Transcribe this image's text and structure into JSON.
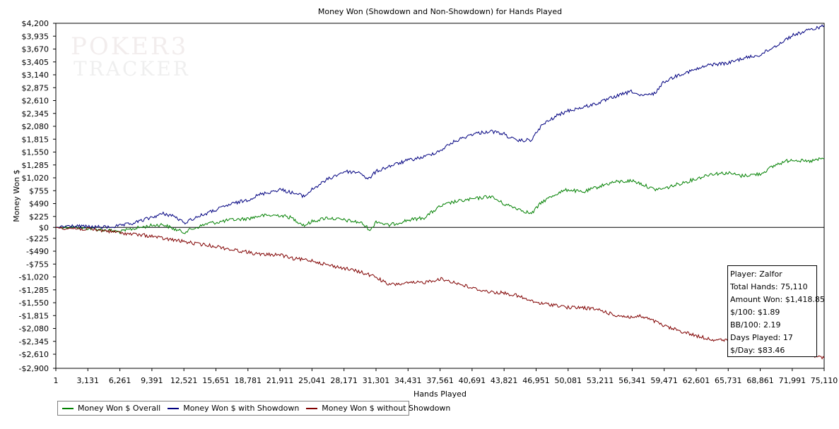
{
  "chart_data": {
    "type": "line",
    "title": "Money Won (Showdown and Non-Showdown) for Hands Played",
    "xlabel": "Hands Played",
    "ylabel": "Money Won $",
    "xlim": [
      1,
      75110
    ],
    "ylim": [
      -2900,
      4200
    ],
    "grid": false,
    "legend_position": "bottom-left",
    "x_ticks": [
      1,
      3131,
      6261,
      9391,
      12521,
      15651,
      18781,
      21911,
      25041,
      28171,
      31301,
      34431,
      37561,
      40691,
      43821,
      46951,
      50081,
      53211,
      56341,
      59471,
      62601,
      65731,
      68861,
      71991,
      75110
    ],
    "x_tick_labels": [
      "1",
      "3,131",
      "6,261",
      "9,391",
      "12,521",
      "15,651",
      "18,781",
      "21,911",
      "25,041",
      "28,171",
      "31,301",
      "34,431",
      "37,561",
      "40,691",
      "43,821",
      "46,951",
      "50,081",
      "53,211",
      "56,341",
      "59,471",
      "62,601",
      "65,731",
      "68,861",
      "71,991",
      "75,110"
    ],
    "y_ticks": [
      4200,
      3935,
      3670,
      3405,
      3140,
      2875,
      2610,
      2345,
      2080,
      1815,
      1550,
      1285,
      1020,
      755,
      490,
      225,
      0,
      -225,
      -490,
      -755,
      -1020,
      -1285,
      -1550,
      -1815,
      -2080,
      -2345,
      -2610,
      -2900
    ],
    "y_tick_labels": [
      "$4,200",
      "$3,935",
      "$3,670",
      "$3,405",
      "$3,140",
      "$2,875",
      "$2,610",
      "$2,345",
      "$2,080",
      "$1,815",
      "$1,550",
      "$1,285",
      "$1,020",
      "$755",
      "$490",
      "$225",
      "$0",
      "-$225",
      "-$490",
      "-$755",
      "-$1,020",
      "-$1,285",
      "-$1,550",
      "-$1,815",
      "-$2,080",
      "-$2,345",
      "-$2,610",
      "-$2,900"
    ],
    "series": [
      {
        "name": "Money Won $ Overall",
        "color": "#008000",
        "x": [
          1,
          1500,
          3131,
          5000,
          6261,
          7500,
          9391,
          10500,
          11500,
          12521,
          13500,
          15000,
          15651,
          17000,
          18781,
          20000,
          21911,
          23000,
          24300,
          25041,
          26500,
          28171,
          29800,
          30800,
          31301,
          32500,
          34431,
          36000,
          37561,
          38800,
          40691,
          42500,
          43821,
          45000,
          46500,
          47500,
          49000,
          50081,
          51500,
          53211,
          54500,
          56341,
          57200,
          58500,
          59471,
          61000,
          62601,
          64000,
          65731,
          67000,
          68861,
          70500,
          71991,
          73500,
          75110
        ],
        "values": [
          0,
          10,
          -20,
          -60,
          -90,
          -30,
          40,
          60,
          -30,
          -100,
          -20,
          90,
          100,
          150,
          180,
          240,
          250,
          200,
          40,
          120,
          200,
          150,
          100,
          -60,
          130,
          40,
          150,
          200,
          430,
          520,
          580,
          640,
          480,
          400,
          280,
          520,
          700,
          780,
          720,
          850,
          930,
          960,
          900,
          780,
          800,
          900,
          1000,
          1100,
          1120,
          1060,
          1100,
          1300,
          1400,
          1350,
          1418
        ]
      },
      {
        "name": "Money Won $ with Showdown",
        "color": "#000080",
        "x": [
          1,
          1500,
          3131,
          5000,
          6261,
          7500,
          9391,
          10500,
          11500,
          12521,
          13500,
          15651,
          17000,
          18781,
          20000,
          21911,
          23000,
          24300,
          25041,
          26500,
          28171,
          29800,
          30500,
          31301,
          32500,
          34431,
          36000,
          37561,
          38800,
          40691,
          42500,
          43821,
          45000,
          46500,
          47500,
          49000,
          50081,
          51500,
          53211,
          54500,
          56341,
          57200,
          58500,
          59471,
          61000,
          62601,
          64000,
          65731,
          67000,
          68861,
          70500,
          71991,
          73500,
          75110
        ],
        "values": [
          0,
          30,
          10,
          5,
          30,
          80,
          210,
          280,
          240,
          90,
          190,
          360,
          470,
          570,
          680,
          780,
          720,
          640,
          780,
          980,
          1150,
          1130,
          980,
          1150,
          1250,
          1380,
          1450,
          1580,
          1750,
          1920,
          1980,
          1920,
          1780,
          1800,
          2100,
          2300,
          2400,
          2470,
          2570,
          2680,
          2800,
          2700,
          2750,
          3000,
          3150,
          3250,
          3350,
          3380,
          3470,
          3550,
          3750,
          3950,
          4050,
          4150
        ]
      },
      {
        "name": "Money Won $ without Showdown",
        "color": "#800000",
        "x": [
          1,
          1500,
          3131,
          5000,
          6261,
          7500,
          9391,
          10500,
          11500,
          12521,
          13500,
          15651,
          17000,
          18781,
          20000,
          21911,
          23000,
          25041,
          26500,
          28171,
          29800,
          31301,
          32500,
          34431,
          36000,
          37561,
          38800,
          40691,
          42500,
          43821,
          45000,
          46500,
          47500,
          49000,
          50081,
          51500,
          53211,
          54500,
          56341,
          57200,
          58500,
          59471,
          61000,
          62601,
          64000,
          65731,
          67000,
          68861,
          70500,
          71991,
          73500,
          75110
        ],
        "values": [
          0,
          -20,
          -40,
          -70,
          -110,
          -140,
          -180,
          -230,
          -260,
          -290,
          -330,
          -390,
          -450,
          -510,
          -560,
          -560,
          -640,
          -680,
          -770,
          -840,
          -920,
          -1020,
          -1180,
          -1150,
          -1130,
          -1060,
          -1120,
          -1250,
          -1330,
          -1350,
          -1400,
          -1520,
          -1570,
          -1600,
          -1650,
          -1650,
          -1700,
          -1800,
          -1850,
          -1830,
          -1930,
          -2030,
          -2130,
          -2230,
          -2300,
          -2330,
          -2400,
          -2390,
          -2420,
          -2520,
          -2600,
          -2690
        ]
      }
    ]
  },
  "info_box": {
    "player": "Player: Zalfor",
    "total_hands": "Total Hands: 75,110",
    "amount_won": "Amount Won: $1,418.85",
    "per_100": "$/100: $1.89",
    "bb_per_100": "BB/100: 2.19",
    "days_played": "Days Played: 17",
    "per_day": "$/Day: $83.46"
  },
  "watermark": {
    "line1": "POKER",
    "line2": "TRACKER",
    "suffix": "3"
  }
}
